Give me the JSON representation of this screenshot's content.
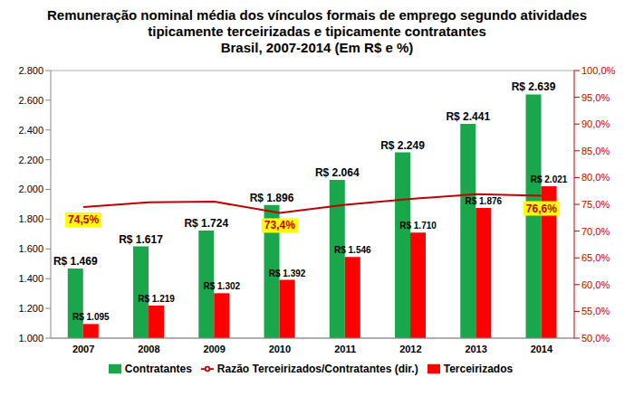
{
  "chart_data": {
    "type": "bar",
    "title": "Remuneração nominal média dos vínculos formais de emprego segundo atividades tipicamente terceirizadas e tipicamente contratantes",
    "subtitle": "Brasil, 2007-2014 (Em R$ e %)",
    "categories": [
      "2007",
      "2008",
      "2009",
      "2010",
      "2011",
      "2012",
      "2013",
      "2014"
    ],
    "series": [
      {
        "name": "Contratantes",
        "color": "#1aa64a",
        "values": [
          1469,
          1617,
          1724,
          1896,
          2064,
          2249,
          2441,
          2639
        ],
        "value_labels": [
          "R$ 1.469",
          "R$ 1.617",
          "R$ 1.724",
          "R$ 1.896",
          "R$ 2.064",
          "R$ 2.249",
          "R$ 2.441",
          "R$ 2.639"
        ]
      },
      {
        "name": "Terceirizados",
        "color": "#ff0000",
        "values": [
          1095,
          1219,
          1302,
          1392,
          1546,
          1710,
          1876,
          2021
        ],
        "value_labels": [
          "R$ 1.095",
          "R$ 1.219",
          "R$ 1.302",
          "R$ 1.392",
          "R$ 1.546",
          "R$ 1.710",
          "R$ 1.876",
          "R$ 2.021"
        ]
      },
      {
        "name": "Razão Terceirizados/Contratantes (dir.)",
        "type": "line",
        "axis": "y2",
        "color": "#c00000",
        "values": [
          74.5,
          75.4,
          75.5,
          73.4,
          74.9,
          76.0,
          76.9,
          76.6
        ],
        "value_labels": [
          "74,5%",
          null,
          null,
          "73,4%",
          null,
          null,
          null,
          "76,6%"
        ]
      }
    ],
    "ylim": [
      1000,
      2800
    ],
    "yticks": [
      {
        "value": 1000,
        "label": "1.000"
      },
      {
        "value": 1200,
        "label": "1.200"
      },
      {
        "value": 1400,
        "label": "1.400"
      },
      {
        "value": 1600,
        "label": "1.600"
      },
      {
        "value": 1800,
        "label": "1.800"
      },
      {
        "value": 2000,
        "label": "2.000"
      },
      {
        "value": 2200,
        "label": "2.200"
      },
      {
        "value": 2400,
        "label": "2.400"
      },
      {
        "value": 2600,
        "label": "2.600"
      },
      {
        "value": 2800,
        "label": "2.800"
      }
    ],
    "y2lim": [
      50,
      100
    ],
    "y2ticks": [
      {
        "value": 50,
        "label": "50,0%"
      },
      {
        "value": 55,
        "label": "55,0%"
      },
      {
        "value": 60,
        "label": "60,0%"
      },
      {
        "value": 65,
        "label": "65,0%"
      },
      {
        "value": 70,
        "label": "70,0%"
      },
      {
        "value": 75,
        "label": "75,0%"
      },
      {
        "value": 80,
        "label": "80,0%"
      },
      {
        "value": 85,
        "label": "85,0%"
      },
      {
        "value": 90,
        "label": "90,0%"
      },
      {
        "value": 95,
        "label": "95,0%"
      },
      {
        "value": 100,
        "label": "100,0%"
      }
    ],
    "grid": true,
    "legend": "bottom",
    "data_labels": true
  }
}
